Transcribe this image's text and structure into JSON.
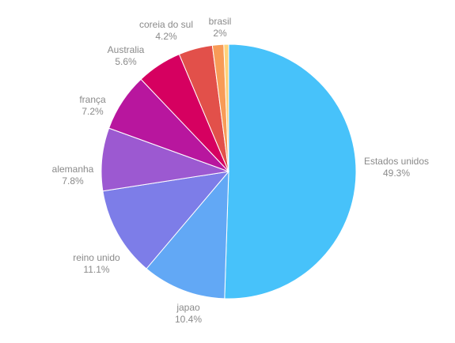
{
  "chart_data": {
    "type": "pie",
    "title": "",
    "slices": [
      {
        "label": "Estados unidos",
        "value": 49.3,
        "value_label": "49.3%",
        "color": "#47c2fa"
      },
      {
        "label": "japao",
        "value": 10.4,
        "value_label": "10.4%",
        "color": "#62a8f5"
      },
      {
        "label": "reino unido",
        "value": 11.1,
        "value_label": "11.1%",
        "color": "#7d7de8"
      },
      {
        "label": "alemanha",
        "value": 7.8,
        "value_label": "7.8%",
        "color": "#9c59d1"
      },
      {
        "label": "frança",
        "value": 7.2,
        "value_label": "7.2%",
        "color": "#b8169e"
      },
      {
        "label": "Australia",
        "value": 5.6,
        "value_label": "5.6%",
        "color": "#d60060"
      },
      {
        "label": "coreia do sul",
        "value": 4.2,
        "value_label": "4.2%",
        "color": "#e2504a"
      },
      {
        "label": "brasil",
        "value": 2,
        "value_label": "2%",
        "color": "#f89b57"
      }
    ],
    "last_slice_color": "#ffd27a",
    "start_angle": "top (12 o'clock)",
    "direction": "clockwise",
    "legend": "none"
  }
}
